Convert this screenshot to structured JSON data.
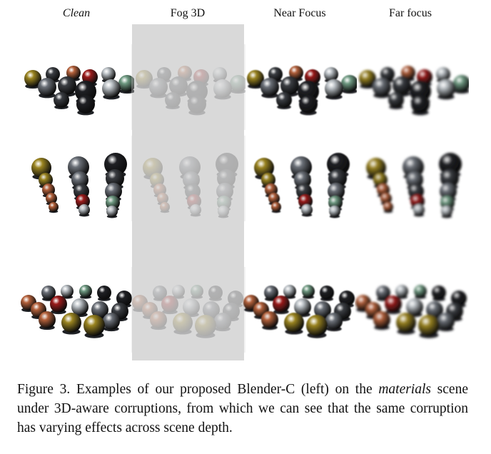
{
  "columns": [
    {
      "title": "Clean",
      "italic": true
    },
    {
      "title": "Fog 3D",
      "italic": false
    },
    {
      "title": "Near Focus",
      "italic": false
    },
    {
      "title": "Far focus",
      "italic": false
    }
  ],
  "caption": {
    "prefix": "Figure 3.",
    "part1": "Examples of our proposed Blender-C (left) on the ",
    "italic": "materials",
    "part2": " scene under 3D-aware corruptions, from which we can see that the same corruption has varying effects across scene depth."
  }
}
